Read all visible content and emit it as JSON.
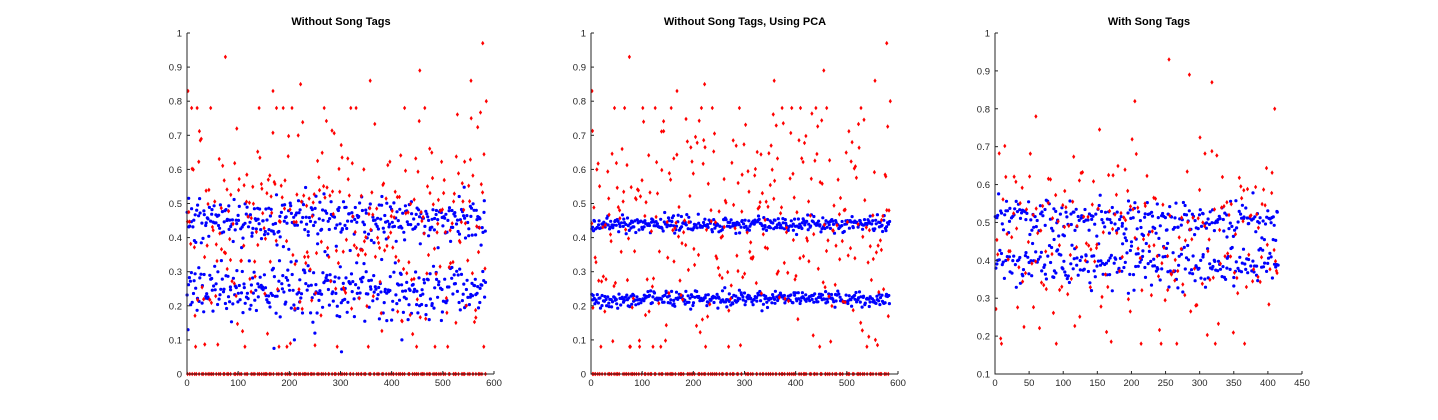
{
  "chart_data": [
    {
      "type": "scatter",
      "title": "Without Song Tags",
      "xlabel": "",
      "ylabel": "",
      "xlim": [
        0,
        600
      ],
      "ylim": [
        0,
        1
      ],
      "xticks": [
        "0",
        "100",
        "200",
        "300",
        "400",
        "500",
        "600"
      ],
      "yticks": [
        "0",
        "0.1",
        "0.2",
        "0.3",
        "0.4",
        "0.5",
        "0.6",
        "0.7",
        "0.8",
        "0.9",
        "1"
      ],
      "grid": false,
      "legend": "none",
      "n_points": 584,
      "series": [
        {
          "marker": "dot",
          "color": "#0000ff",
          "clusters": [
            {
              "x_range": [
                0,
                584
              ],
              "y_center": 0.45,
              "y_spread": 0.035
            },
            {
              "x_range": [
                0,
                584
              ],
              "y_center": 0.245,
              "y_spread": 0.04
            }
          ],
          "outliers": [
            [
              2,
              0.13
            ],
            [
              170,
              0.075
            ],
            [
              302,
              0.065
            ],
            [
              210,
              0.1
            ],
            [
              420,
              0.1
            ],
            [
              250,
              0.12
            ]
          ]
        },
        {
          "marker": "diamond",
          "color": "#ff0000",
          "clusters": [
            {
              "x_range": [
                0,
                584
              ],
              "y_center": 0.0,
              "y_spread": 0.0
            },
            {
              "x_range": [
                0,
                584
              ],
              "y_center": 0.45,
              "y_spread": 0.2
            }
          ],
          "outliers": [
            [
              2,
              0.83
            ],
            [
              75,
              0.93
            ],
            [
              168,
              0.83
            ],
            [
              222,
              0.85
            ],
            [
              358,
              0.86
            ],
            [
              455,
              0.89
            ],
            [
              555,
              0.86
            ],
            [
              578,
              0.97
            ],
            [
              585,
              0.8
            ]
          ]
        }
      ]
    },
    {
      "type": "scatter",
      "title": "Without Song Tags, Using PCA",
      "xlabel": "",
      "ylabel": "",
      "xlim": [
        0,
        600
      ],
      "ylim": [
        0,
        1
      ],
      "xticks": [
        "0",
        "100",
        "200",
        "300",
        "400",
        "500",
        "600"
      ],
      "yticks": [
        "0",
        "0.1",
        "0.2",
        "0.3",
        "0.4",
        "0.5",
        "0.6",
        "0.7",
        "0.8",
        "0.9",
        "1"
      ],
      "grid": false,
      "legend": "none",
      "n_points": 584,
      "series": [
        {
          "marker": "dot",
          "color": "#0000ff",
          "clusters": [
            {
              "x_range": [
                0,
                584
              ],
              "y_center": 0.44,
              "y_spread": 0.012
            },
            {
              "x_range": [
                0,
                584
              ],
              "y_center": 0.22,
              "y_spread": 0.012
            }
          ],
          "outliers": []
        },
        {
          "marker": "diamond",
          "color": "#ff0000",
          "clusters": [
            {
              "x_range": [
                0,
                584
              ],
              "y_center": 0.0,
              "y_spread": 0.0
            },
            {
              "x_range": [
                0,
                584
              ],
              "y_center": 0.45,
              "y_spread": 0.2
            }
          ],
          "outliers": [
            [
              2,
              0.83
            ],
            [
              75,
              0.93
            ],
            [
              168,
              0.83
            ],
            [
              222,
              0.85
            ],
            [
              358,
              0.86
            ],
            [
              455,
              0.89
            ],
            [
              555,
              0.86
            ],
            [
              578,
              0.97
            ],
            [
              585,
              0.8
            ]
          ]
        }
      ]
    },
    {
      "type": "scatter",
      "title": "With Song Tags",
      "xlabel": "",
      "ylabel": "",
      "xlim": [
        0,
        450
      ],
      "ylim": [
        0.1,
        1
      ],
      "xticks": [
        "0",
        "50",
        "100",
        "150",
        "200",
        "250",
        "300",
        "350",
        "400",
        "450"
      ],
      "yticks": [
        "0.1",
        "0.2",
        "0.3",
        "0.4",
        "0.5",
        "0.6",
        "0.7",
        "0.8",
        "0.9",
        "1"
      ],
      "grid": false,
      "legend": "none",
      "n_points": 415,
      "series": [
        {
          "marker": "dot",
          "color": "#0000ff",
          "clusters": [
            {
              "x_range": [
                0,
                415
              ],
              "y_center": 0.51,
              "y_spread": 0.025
            },
            {
              "x_range": [
                0,
                415
              ],
              "y_center": 0.39,
              "y_spread": 0.03
            }
          ],
          "outliers": []
        },
        {
          "marker": "diamond",
          "color": "#ff0000",
          "clusters": [
            {
              "x_range": [
                0,
                415
              ],
              "y_center": 0.45,
              "y_spread": 0.14
            }
          ],
          "outliers": [
            [
              255,
              0.93
            ],
            [
              285,
              0.89
            ],
            [
              318,
              0.87
            ],
            [
              410,
              0.8
            ],
            [
              205,
              0.82
            ],
            [
              60,
              0.78
            ]
          ]
        }
      ]
    }
  ]
}
